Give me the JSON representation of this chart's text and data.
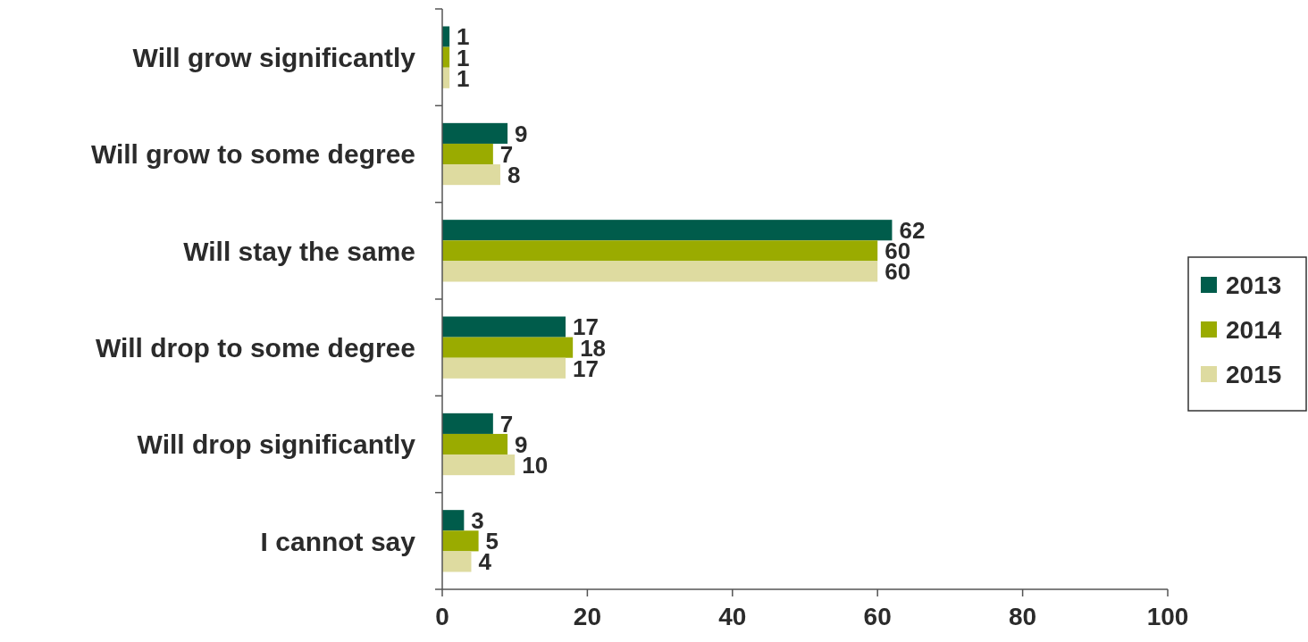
{
  "chart_data": {
    "type": "bar",
    "orientation": "horizontal",
    "categories": [
      "Will grow significantly",
      "Will grow to some degree",
      "Will stay the same",
      "Will drop to some degree",
      "Will drop significantly",
      "I cannot say"
    ],
    "series": [
      {
        "name": "2013",
        "color": "#005c4b",
        "values": [
          1,
          9,
          62,
          17,
          7,
          3
        ]
      },
      {
        "name": "2014",
        "color": "#9aab00",
        "values": [
          1,
          7,
          60,
          18,
          9,
          5
        ]
      },
      {
        "name": "2015",
        "color": "#dedba0",
        "values": [
          1,
          8,
          60,
          17,
          10,
          4
        ]
      }
    ],
    "xlim": [
      0,
      100
    ],
    "xticks": [
      0,
      20,
      40,
      60,
      80,
      100
    ],
    "data_labels": true,
    "legend": "right",
    "grid": false
  }
}
